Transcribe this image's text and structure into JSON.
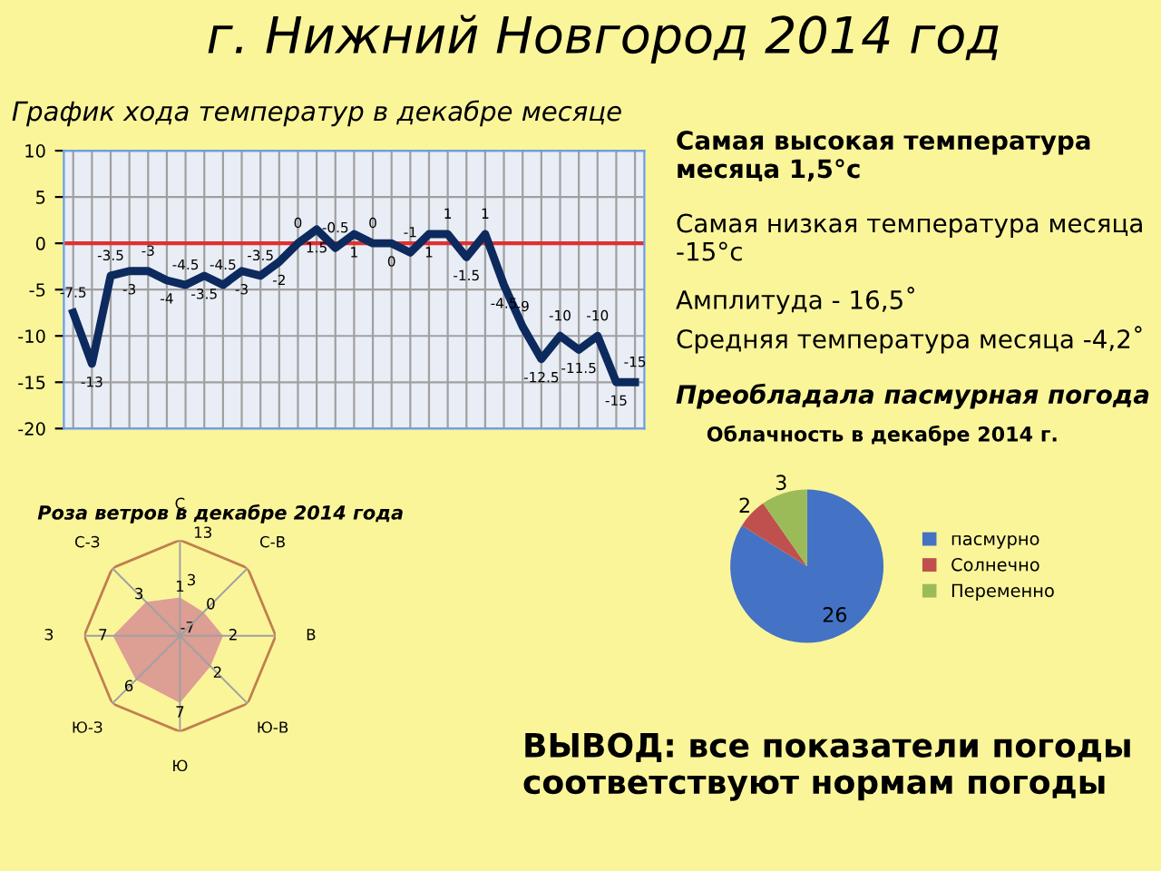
{
  "chart_data": [
    {
      "type": "line",
      "title": "г. Нижний Новгород 2014 год",
      "subtitle": "График хода температур в декабре месяце",
      "categories": [
        null,
        null,
        null,
        null,
        null,
        null,
        null,
        null,
        null,
        null,
        null,
        null,
        null,
        null,
        null,
        null,
        null,
        null,
        null,
        null,
        null,
        null,
        null,
        null,
        null,
        null,
        null,
        null,
        null,
        null,
        null
      ],
      "series": [
        {
          "color": "#0d2a5e",
          "values": [
            -7.5,
            -13,
            -3.5,
            -3,
            -3,
            -4,
            -4.5,
            -3.5,
            -4.5,
            -3,
            -3.5,
            -2,
            0,
            1.5,
            -0.5,
            1,
            0,
            0,
            -1,
            1,
            1,
            -1.5,
            1,
            -4.5,
            -9,
            -12.5,
            -10,
            -11.5,
            -10,
            -15,
            -15
          ]
        }
      ],
      "ylim": [
        -20,
        10
      ],
      "yticks": [
        -20,
        -15,
        -10,
        -5,
        0,
        5,
        10
      ],
      "grid": true,
      "data_labels": true,
      "marker": "none",
      "line_style": "solid",
      "ref_lines": [
        {
          "axis": "y",
          "value": 0,
          "color": "#e03030"
        }
      ]
    },
    {
      "type": "other",
      "annotations": [
        "Самая высокая температура месяца 1,5°с",
        "Самая низкая температура месяца -15°с",
        "Амплитуда - 16,5˚",
        "Средняя температура месяца -4,2˚",
        "Преобладала пасмурная погода",
        "ВЫВОД: все показатели погоды соответствуют нормам погоды"
      ]
    },
    {
      "type": "pie",
      "title": "Облачность в декабре 2014 г.",
      "categories": [
        "пасмурно",
        "Солнечно",
        "Переменно"
      ],
      "values": [
        26,
        2,
        3
      ],
      "colors": [
        "#4472c4",
        "#c0504d",
        "#9bbb59"
      ],
      "data_labels": true,
      "legend": "right"
    },
    {
      "type": "radar",
      "title": "Роза ветров в декабре 2014 года",
      "categories": [
        "С",
        "С-В",
        "В",
        "Ю-В",
        "Ю",
        "Ю-З",
        "З",
        "С-З"
      ],
      "series": [
        {
          "color": "#d99594",
          "values": [
            1,
            0,
            2,
            2,
            7,
            6,
            7,
            3
          ]
        }
      ],
      "ylim": [
        -7,
        13
      ],
      "yticks": [
        -7,
        3,
        13
      ],
      "grid": true,
      "data_labels": true
    }
  ]
}
